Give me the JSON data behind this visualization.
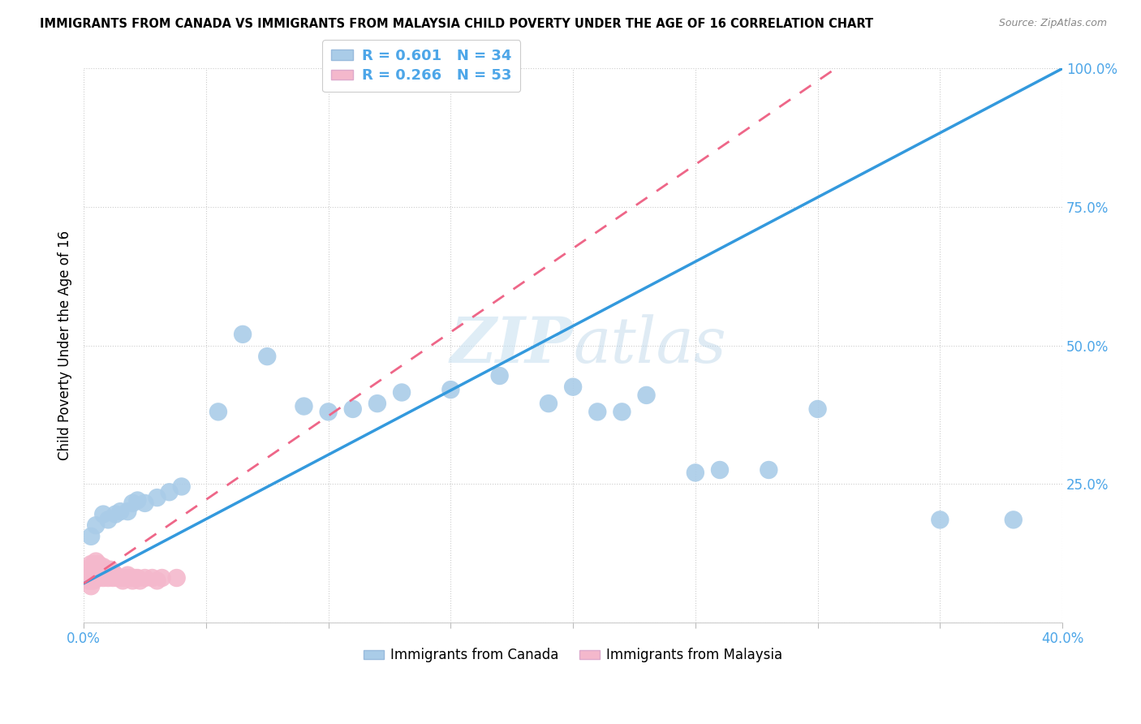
{
  "title": "IMMIGRANTS FROM CANADA VS IMMIGRANTS FROM MALAYSIA CHILD POVERTY UNDER THE AGE OF 16 CORRELATION CHART",
  "source": "Source: ZipAtlas.com",
  "ylabel": "Child Poverty Under the Age of 16",
  "watermark": "ZIPatlas",
  "xmin": 0.0,
  "xmax": 0.4,
  "ymin": 0.0,
  "ymax": 1.0,
  "canada_R": 0.601,
  "canada_N": 34,
  "malaysia_R": 0.266,
  "malaysia_N": 53,
  "canada_color": "#aacce8",
  "malaysia_color": "#f4b8cc",
  "canada_line_color": "#3399dd",
  "malaysia_line_color": "#ee6688",
  "legend_label_canada": "Immigrants from Canada",
  "legend_label_malaysia": "Immigrants from Malaysia",
  "canada_x": [
    0.003,
    0.005,
    0.008,
    0.01,
    0.013,
    0.015,
    0.018,
    0.02,
    0.022,
    0.025,
    0.03,
    0.035,
    0.04,
    0.055,
    0.065,
    0.075,
    0.09,
    0.1,
    0.11,
    0.12,
    0.13,
    0.15,
    0.17,
    0.19,
    0.2,
    0.21,
    0.22,
    0.23,
    0.25,
    0.26,
    0.28,
    0.3,
    0.35,
    0.38
  ],
  "canada_y": [
    0.155,
    0.175,
    0.195,
    0.185,
    0.195,
    0.2,
    0.2,
    0.215,
    0.22,
    0.215,
    0.225,
    0.235,
    0.245,
    0.38,
    0.52,
    0.48,
    0.39,
    0.38,
    0.385,
    0.395,
    0.415,
    0.42,
    0.445,
    0.395,
    0.425,
    0.38,
    0.38,
    0.41,
    0.27,
    0.275,
    0.275,
    0.385,
    0.185,
    0.185
  ],
  "malaysia_x": [
    0.001,
    0.001,
    0.002,
    0.002,
    0.002,
    0.003,
    0.003,
    0.003,
    0.003,
    0.003,
    0.004,
    0.004,
    0.004,
    0.004,
    0.005,
    0.005,
    0.005,
    0.005,
    0.006,
    0.006,
    0.006,
    0.006,
    0.006,
    0.007,
    0.007,
    0.007,
    0.008,
    0.008,
    0.008,
    0.009,
    0.009,
    0.01,
    0.01,
    0.011,
    0.011,
    0.012,
    0.012,
    0.013,
    0.014,
    0.015,
    0.016,
    0.017,
    0.018,
    0.019,
    0.02,
    0.021,
    0.022,
    0.023,
    0.025,
    0.028,
    0.03,
    0.032,
    0.038
  ],
  "malaysia_y": [
    0.085,
    0.095,
    0.075,
    0.085,
    0.095,
    0.065,
    0.075,
    0.085,
    0.095,
    0.105,
    0.075,
    0.085,
    0.095,
    0.105,
    0.08,
    0.09,
    0.1,
    0.11,
    0.08,
    0.085,
    0.09,
    0.095,
    0.105,
    0.085,
    0.09,
    0.095,
    0.08,
    0.09,
    0.1,
    0.085,
    0.095,
    0.08,
    0.095,
    0.085,
    0.095,
    0.08,
    0.09,
    0.085,
    0.08,
    0.08,
    0.075,
    0.08,
    0.085,
    0.08,
    0.075,
    0.08,
    0.08,
    0.075,
    0.08,
    0.08,
    0.075,
    0.08,
    0.08
  ],
  "canada_trendline_x0": 0.0,
  "canada_trendline_y0": 0.07,
  "canada_trendline_x1": 0.4,
  "canada_trendline_y1": 1.0,
  "malaysia_trendline_x0": 0.0,
  "malaysia_trendline_y0": 0.07,
  "malaysia_trendline_x1": 0.038,
  "malaysia_trendline_y1": 0.185
}
